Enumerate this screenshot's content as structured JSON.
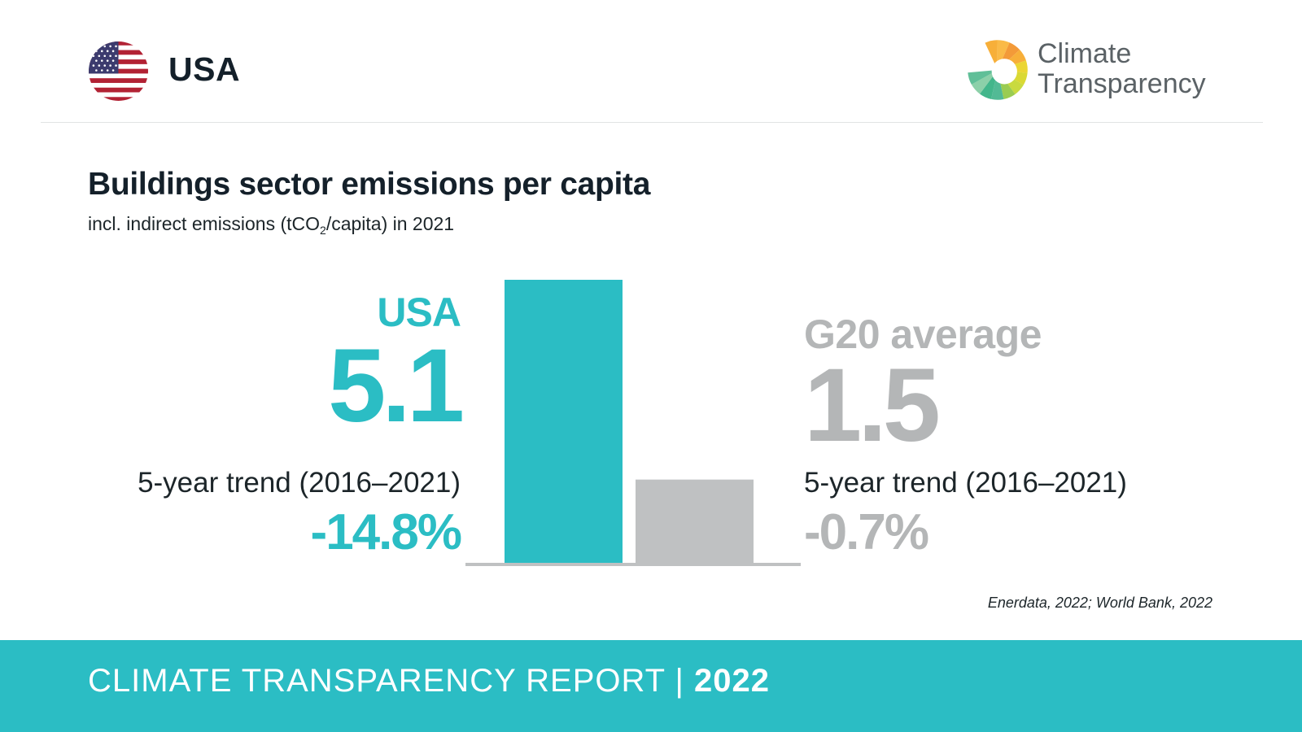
{
  "header": {
    "country": "USA",
    "brand_line1": "Climate",
    "brand_line2": "Transparency"
  },
  "title": "Buildings sector emissions per capita",
  "subtitle_before": "incl. indirect emissions (tCO",
  "subtitle_sub": "2",
  "subtitle_after": "/capita) in 2021",
  "country_stat": {
    "label": "USA",
    "value": "5.1",
    "trend_label": "5-year trend (2016–2021)",
    "trend_value": "-14.8%"
  },
  "g20_stat": {
    "label": "G20 average",
    "value": "1.5",
    "trend_label": "5-year trend (2016–2021)",
    "trend_value": "-0.7%"
  },
  "source": "Enerdata, 2022; World Bank, 2022",
  "footer": {
    "report_label": "CLIMATE TRANSPARENCY REPORT",
    "separator": "|",
    "year": "2022"
  },
  "colors": {
    "accent": "#2bbdc4",
    "g20_bar": "#bfc1c2",
    "g20_text": "#b4b6b7",
    "axis": "#bfc1c2"
  },
  "icons": {
    "flag": "us-flag-icon",
    "logo": "climate-transparency-logo"
  },
  "chart_data": {
    "type": "bar",
    "categories": [
      "USA",
      "G20 average"
    ],
    "values": [
      5.1,
      1.5
    ],
    "colors": [
      "#2bbdc4",
      "#bfc1c2"
    ],
    "ylim": [
      0,
      5.1
    ],
    "grid": false,
    "legend": "none"
  }
}
